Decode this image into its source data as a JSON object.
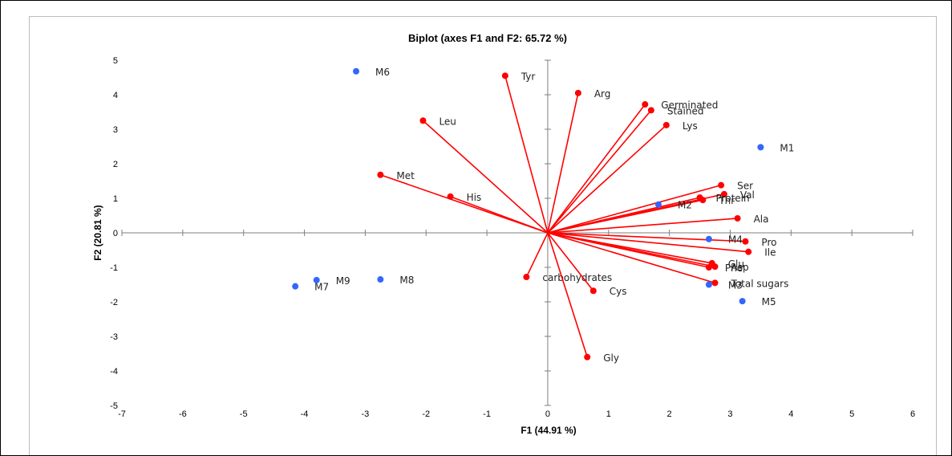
{
  "chart_data": {
    "type": "scatter",
    "title": "Biplot (axes F1 and F2: 65.72 %)",
    "xlabel": "F1 (44.91 %)",
    "ylabel": "F2 (20.81 %)",
    "xlim": [
      -7,
      6
    ],
    "ylim": [
      -5,
      5
    ],
    "xticks": [
      -7,
      -6,
      -5,
      -4,
      -3,
      -2,
      -1,
      0,
      1,
      2,
      3,
      4,
      5,
      6
    ],
    "yticks": [
      5,
      4,
      3,
      2,
      1,
      0,
      -1,
      -2,
      -3,
      -4,
      -5
    ],
    "grid": false,
    "colors": {
      "variables": "#ff0000",
      "observations": "#3366ff"
    },
    "variables": [
      {
        "name": "Tyr",
        "x": -0.7,
        "y": 4.55
      },
      {
        "name": "Arg",
        "x": 0.5,
        "y": 4.05
      },
      {
        "name": "Germinated",
        "x": 1.6,
        "y": 3.72
      },
      {
        "name": "Stained",
        "x": 1.7,
        "y": 3.55
      },
      {
        "name": "Lys",
        "x": 1.95,
        "y": 3.12
      },
      {
        "name": "Leu",
        "x": -2.05,
        "y": 3.25
      },
      {
        "name": "Met",
        "x": -2.75,
        "y": 1.68
      },
      {
        "name": "His",
        "x": -1.6,
        "y": 1.05
      },
      {
        "name": "Ser",
        "x": 2.85,
        "y": 1.38
      },
      {
        "name": "Val",
        "x": 2.9,
        "y": 1.12
      },
      {
        "name": "Protein",
        "x": 2.5,
        "y": 1.02
      },
      {
        "name": "Thr",
        "x": 2.55,
        "y": 0.95
      },
      {
        "name": "Ala",
        "x": 3.12,
        "y": 0.42
      },
      {
        "name": "Pro",
        "x": 3.25,
        "y": -0.25
      },
      {
        "name": "Ile",
        "x": 3.3,
        "y": -0.55
      },
      {
        "name": "Glu",
        "x": 2.7,
        "y": -0.88
      },
      {
        "name": "Asp",
        "x": 2.75,
        "y": -0.98
      },
      {
        "name": "Phe",
        "x": 2.65,
        "y": -1.0
      },
      {
        "name": "Total sugars",
        "x": 2.75,
        "y": -1.45
      },
      {
        "name": "carbohydrates",
        "x": -0.35,
        "y": -1.28
      },
      {
        "name": "Cys",
        "x": 0.75,
        "y": -1.68
      },
      {
        "name": "Gly",
        "x": 0.65,
        "y": -3.6
      }
    ],
    "observations": [
      {
        "name": "M1",
        "x": 3.5,
        "y": 2.48
      },
      {
        "name": "M2",
        "x": 1.82,
        "y": 0.82
      },
      {
        "name": "M3",
        "x": 2.65,
        "y": -1.5
      },
      {
        "name": "M4",
        "x": 2.65,
        "y": -0.18
      },
      {
        "name": "M5",
        "x": 3.2,
        "y": -1.98
      },
      {
        "name": "M6",
        "x": -3.15,
        "y": 4.68
      },
      {
        "name": "M7",
        "x": -4.15,
        "y": -1.55
      },
      {
        "name": "M8",
        "x": -2.75,
        "y": -1.35
      },
      {
        "name": "M9",
        "x": -3.8,
        "y": -1.37
      }
    ]
  }
}
